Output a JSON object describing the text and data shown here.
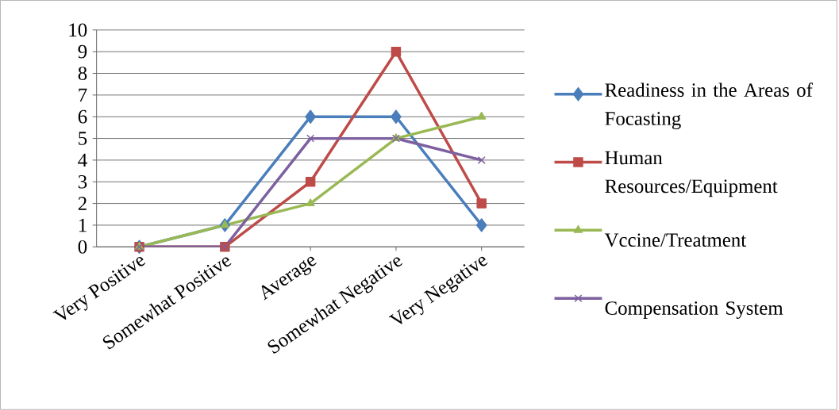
{
  "chart_data": {
    "type": "line",
    "categories": [
      "Very Positive",
      "Somewhat Positive",
      "Average",
      "Somewhat Negative",
      "Very Negative"
    ],
    "series": [
      {
        "name": "Readiness in the Areas of Focasting",
        "color": "#4a7ebb",
        "marker": "diamond",
        "values": [
          0,
          1,
          6,
          6,
          1
        ]
      },
      {
        "name": "Human Resources/Equipment",
        "color": "#be4b48",
        "marker": "square",
        "values": [
          0,
          0,
          3,
          9,
          2
        ]
      },
      {
        "name": "Vccine/Treatment",
        "color": "#98b954",
        "marker": "triangle",
        "values": [
          0,
          1,
          2,
          5,
          6
        ]
      },
      {
        "name": "Compensation System",
        "color": "#7d60a0",
        "marker": "cross",
        "values": [
          0,
          0,
          5,
          5,
          4
        ]
      }
    ],
    "ylim": [
      0,
      10
    ],
    "yticks": [
      0,
      1,
      2,
      3,
      4,
      5,
      6,
      7,
      8,
      9,
      10
    ],
    "grid": "y",
    "legend": "right",
    "line_style": "solid"
  }
}
